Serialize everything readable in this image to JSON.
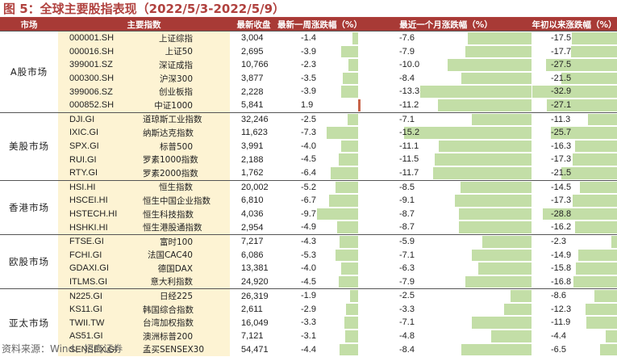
{
  "title": "图 5：全球主要股指表现（2022/5/3-2022/5/9）",
  "headers": [
    "市场",
    "主要指数",
    "最新收盘",
    "最新一周涨跌幅（%）",
    "最近一个月涨跌幅（%）",
    "年初以来涨跌幅（%）"
  ],
  "source": "资料来源：Wind、招商证券",
  "colors": {
    "header_bg": "#a83a36",
    "negative_bar": "#c3dea7",
    "positive_bar": "#c8644a",
    "name_bg": "#fdf3d3"
  },
  "groups": [
    {
      "region": "A股市场",
      "rows": [
        {
          "code": "000001.SH",
          "name": "上证综指",
          "close": "3,004",
          "week": -1.4,
          "month": -7.6,
          "ytd": -17.5
        },
        {
          "code": "000016.SH",
          "name": "上证50",
          "close": "2,695",
          "week": -3.9,
          "month": -7.9,
          "ytd": -17.7
        },
        {
          "code": "399001.SZ",
          "name": "深证成指",
          "close": "10,766",
          "week": -2.3,
          "month": -10.0,
          "ytd": -27.5
        },
        {
          "code": "000300.SH",
          "name": "沪深300",
          "close": "3,877",
          "week": -3.5,
          "month": -8.4,
          "ytd": -21.5
        },
        {
          "code": "399006.SZ",
          "name": "创业板指",
          "close": "2,228",
          "week": -3.9,
          "month": -13.3,
          "ytd": -32.9
        },
        {
          "code": "000852.SH",
          "name": "中证1000",
          "close": "5,841",
          "week": 1.9,
          "month": -11.2,
          "ytd": -27.1
        }
      ]
    },
    {
      "region": "美股市场",
      "rows": [
        {
          "code": "DJI.GI",
          "name": "道琼斯工业指数",
          "close": "32,246",
          "week": -2.5,
          "month": -7.1,
          "ytd": -11.3
        },
        {
          "code": "IXIC.GI",
          "name": "纳斯达克指数",
          "close": "11,623",
          "week": -7.3,
          "month": -15.2,
          "ytd": -25.7
        },
        {
          "code": "SPX.GI",
          "name": "标普500",
          "close": "3,991",
          "week": -4.0,
          "month": -11.1,
          "ytd": -16.3
        },
        {
          "code": "RUI.GI",
          "name": "罗素1000指数",
          "close": "2,188",
          "week": -4.5,
          "month": -11.5,
          "ytd": -17.3
        },
        {
          "code": "RTY.GI",
          "name": "罗素2000指数",
          "close": "1,762",
          "week": -6.4,
          "month": -11.7,
          "ytd": -21.5
        }
      ]
    },
    {
      "region": "香港市场",
      "rows": [
        {
          "code": "HSI.HI",
          "name": "恒生指数",
          "close": "20,002",
          "week": -5.2,
          "month": -8.5,
          "ytd": -14.5
        },
        {
          "code": "HSCEI.HI",
          "name": "恒生中国企业指数",
          "close": "6,810",
          "week": -6.7,
          "month": -9.1,
          "ytd": -17.3
        },
        {
          "code": "HSTECH.HI",
          "name": "恒生科技指数",
          "close": "4,036",
          "week": -9.7,
          "month": -8.7,
          "ytd": -28.8
        },
        {
          "code": "HSHKI.HI",
          "name": "恒生港股通指数",
          "close": "2,954",
          "week": -4.9,
          "month": -8.7,
          "ytd": -16.2
        }
      ]
    },
    {
      "region": "欧股市场",
      "rows": [
        {
          "code": "FTSE.GI",
          "name": "富时100",
          "close": "7,217",
          "week": -4.3,
          "month": -5.9,
          "ytd": -2.3
        },
        {
          "code": "FCHI.GI",
          "name": "法国CAC40",
          "close": "6,086",
          "week": -5.3,
          "month": -7.1,
          "ytd": -14.9
        },
        {
          "code": "GDAXI.GI",
          "name": "德国DAX",
          "close": "13,381",
          "week": -4.0,
          "month": -6.3,
          "ytd": -15.8
        },
        {
          "code": "ITLMS.GI",
          "name": "意大利指数",
          "close": "24,920",
          "week": -4.5,
          "month": -7.9,
          "ytd": -16.8
        }
      ]
    },
    {
      "region": "亚太市场",
      "rows": [
        {
          "code": "N225.GI",
          "name": "日经225",
          "close": "26,319",
          "week": -1.9,
          "month": -2.5,
          "ytd": -8.6
        },
        {
          "code": "KS11.GI",
          "name": "韩国综合指数",
          "close": "2,611",
          "week": -2.9,
          "month": -3.3,
          "ytd": -12.3
        },
        {
          "code": "TWII.TW",
          "name": "台湾加权指数",
          "close": "16,049",
          "week": -3.3,
          "month": -7.1,
          "ytd": -11.9
        },
        {
          "code": "AS51.GI",
          "name": "澳洲标普200",
          "close": "7,121",
          "week": -3.1,
          "month": -4.8,
          "ytd": -4.4
        },
        {
          "code": "SENSEX.GI",
          "name": "孟买SENSEX30",
          "close": "54,471",
          "week": -4.4,
          "month": -8.4,
          "ytd": -6.5
        }
      ]
    }
  ]
}
